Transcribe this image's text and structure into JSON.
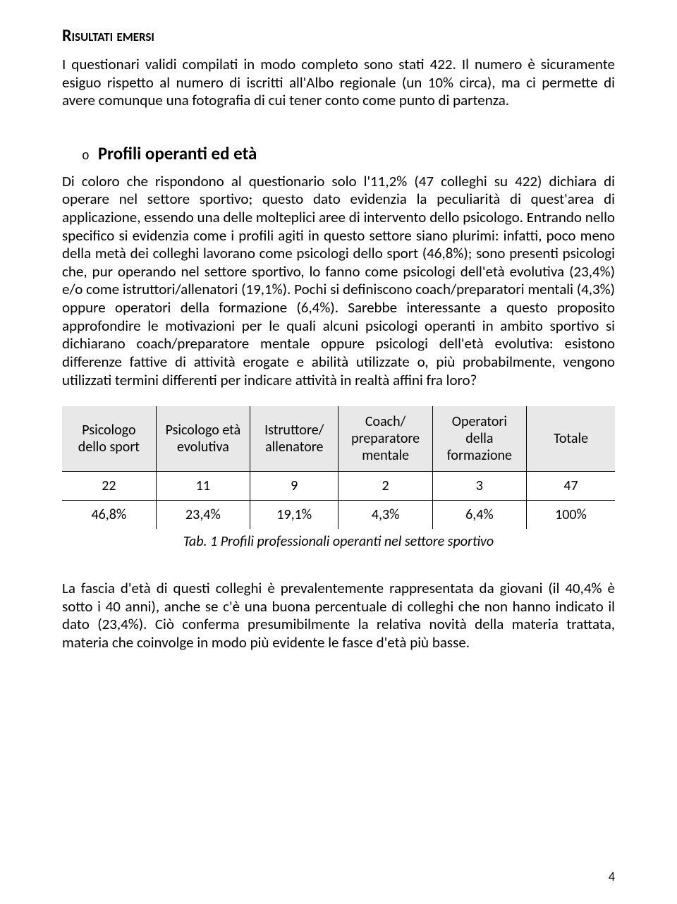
{
  "heading1": "Risultati emersi",
  "intro_para": "I questionari validi compilati in modo completo sono stati 422. Il numero è sicuramente esiguo rispetto al numero di iscritti all'Albo regionale (un 10% circa), ma ci permette di avere comunque una fotografia di cui tener conto come punto di partenza.",
  "section": {
    "bullet": "o",
    "title": "Profili operanti ed età",
    "body": "Di coloro che rispondono al questionario solo l'11,2% (47 colleghi su 422) dichiara di operare nel settore sportivo; questo dato evidenzia la peculiarità di quest'area di applicazione, essendo una delle molteplici aree di intervento dello psicologo. Entrando nello specifico si evidenzia come i profili agiti in questo settore siano plurimi: infatti, poco meno della metà dei colleghi lavorano come psicologi dello sport (46,8%); sono presenti psicologi che, pur operando nel settore sportivo, lo fanno come psicologi dell'età evolutiva (23,4%) e/o come istruttori/allenatori (19,1%). Pochi si definiscono coach/preparatori mentali (4,3%) oppure operatori della formazione (6,4%). Sarebbe interessante a questo proposito approfondire le motivazioni per le quali alcuni psicologi operanti in ambito sportivo si dichiarano coach/preparatore mentale oppure psicologi dell'età evolutiva: esistono differenze fattive di attività erogate e abilità utilizzate o, più probabilmente, vengono utilizzati termini differenti per indicare attività in realtà affini fra loro?"
  },
  "table": {
    "columns": [
      "Psicologo dello sport",
      "Psicologo età evolutiva",
      "Istruttore/ allenatore",
      "Coach/ preparatore mentale",
      "Operatori della formazione",
      "Totale"
    ],
    "rows": [
      [
        "22",
        "11",
        "9",
        "2",
        "3",
        "47"
      ],
      [
        "46,8%",
        "23,4%",
        "19,1%",
        "4,3%",
        "6,4%",
        "100%"
      ]
    ],
    "caption": "Tab. 1 Profili professionali operanti nel settore sportivo",
    "header_bg": "#e8e8e8",
    "border_color": "#000000",
    "col_widths_pct": [
      17,
      17,
      16,
      17,
      17,
      16
    ]
  },
  "closing_para": "La fascia d'età di questi colleghi è prevalentemente rappresentata da giovani (il 40,4% è sotto i 40 anni), anche se c'è una buona percentuale di colleghi che non hanno indicato il dato (23,4%). Ciò conferma presumibilmente la relativa novità della materia trattata, materia che coinvolge in modo più evidente le fasce d'età più basse.",
  "page_number": "4"
}
